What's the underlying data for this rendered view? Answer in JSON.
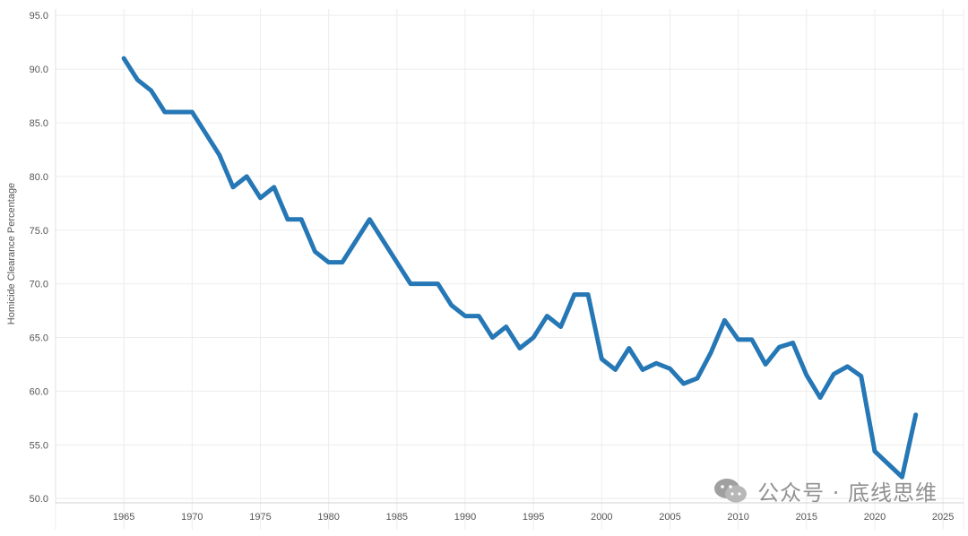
{
  "chart_data": {
    "type": "line",
    "ylabel": "Homicide Clearance Percentage",
    "xlabel": "",
    "xlim": [
      1960,
      2026.5
    ],
    "ylim": [
      49.6,
      95.6
    ],
    "x_ticks": [
      1965,
      1970,
      1975,
      1980,
      1985,
      1990,
      1995,
      2000,
      2005,
      2010,
      2015,
      2020,
      2025
    ],
    "x_tick_labels": [
      "1965",
      "1970",
      "1975",
      "1980",
      "1985",
      "1990",
      "1995",
      "2000",
      "2005",
      "2010",
      "2015",
      "2020",
      "2025"
    ],
    "y_ticks": [
      50,
      55,
      60,
      65,
      70,
      75,
      80,
      85,
      90,
      95
    ],
    "y_tick_labels": [
      "50.0",
      "55.0",
      "60.0",
      "65.0",
      "70.0",
      "75.0",
      "80.0",
      "85.0",
      "90.0",
      "95.0"
    ],
    "grid": true,
    "legend": "none",
    "line_color": "#2577b5",
    "series": [
      {
        "x": [
          1965,
          1966,
          1967,
          1968,
          1969,
          1970,
          1971,
          1972,
          1973,
          1974,
          1975,
          1976,
          1977,
          1978,
          1979,
          1980,
          1981,
          1982,
          1983,
          1984,
          1985,
          1986,
          1987,
          1988,
          1989,
          1990,
          1991,
          1992,
          1993,
          1994,
          1995,
          1996,
          1997,
          1998,
          1999,
          2000,
          2001,
          2002,
          2003,
          2004,
          2005,
          2006,
          2007,
          2008,
          2009,
          2010,
          2011,
          2012,
          2013,
          2014,
          2015,
          2016,
          2017,
          2018,
          2019,
          2020,
          2021,
          2022,
          2023
        ],
        "values": [
          91.0,
          89.0,
          88.0,
          86.0,
          86.0,
          86.0,
          84.0,
          82.0,
          79.0,
          80.0,
          78.0,
          79.0,
          76.0,
          76.0,
          73.0,
          72.0,
          72.0,
          74.0,
          76.0,
          74.0,
          72.0,
          70.0,
          70.0,
          70.0,
          68.0,
          67.0,
          67.0,
          65.0,
          66.0,
          64.0,
          65.0,
          67.0,
          66.0,
          69.0,
          69.0,
          63.0,
          62.0,
          64.0,
          62.0,
          62.6,
          62.1,
          60.7,
          61.2,
          63.6,
          66.6,
          64.8,
          64.8,
          62.5,
          64.1,
          64.5,
          61.5,
          59.4,
          61.6,
          62.3,
          61.4,
          54.4,
          53.2,
          52.0,
          57.8
        ]
      }
    ]
  },
  "watermark": {
    "text": "公众号 · 底线思维",
    "icon": "wechat-icon",
    "color": "#8c8c8c"
  }
}
